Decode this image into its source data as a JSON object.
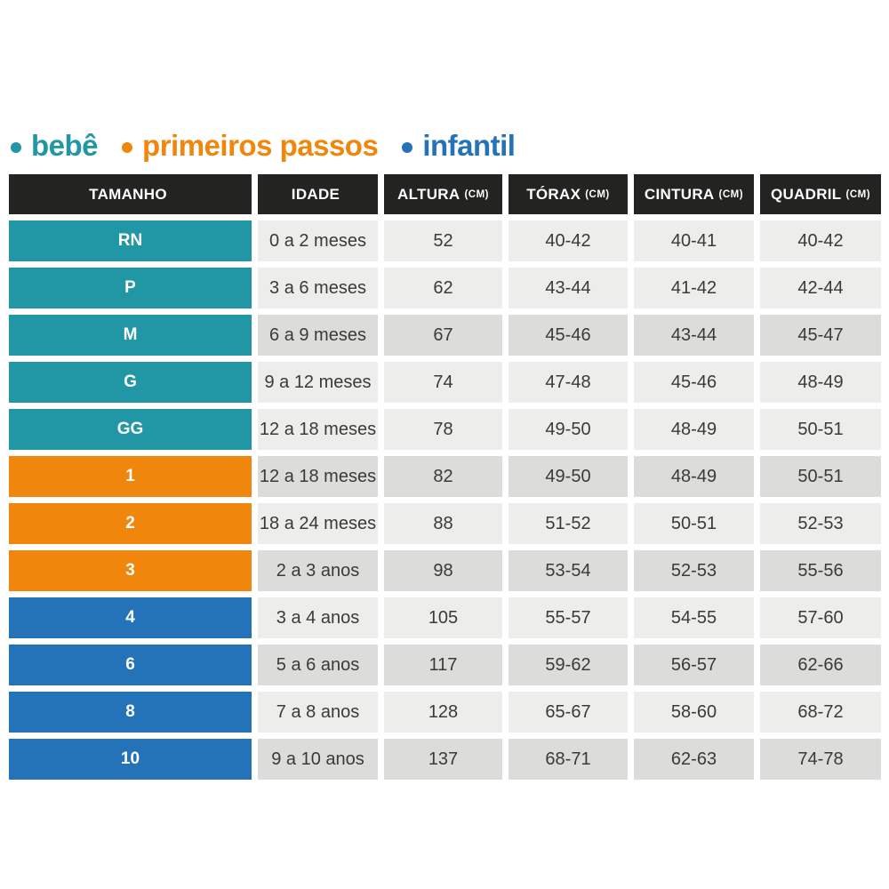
{
  "legend": {
    "items": [
      {
        "label": "bebê",
        "color": "#2196a4"
      },
      {
        "label": "primeiros passos",
        "color": "#f0860b"
      },
      {
        "label": "infantil",
        "color": "#2473b8"
      }
    ]
  },
  "table": {
    "headers": [
      {
        "label": "TAMANHO",
        "unit": ""
      },
      {
        "label": "IDADE",
        "unit": ""
      },
      {
        "label": "ALTURA",
        "unit": "(CM)"
      },
      {
        "label": "TÓRAX",
        "unit": "(CM)"
      },
      {
        "label": "CINTURA",
        "unit": "(CM)"
      },
      {
        "label": "QUADRIL",
        "unit": "(CM)"
      }
    ],
    "rows": [
      {
        "size": "RN",
        "age": "0 a 2 meses",
        "height": "52",
        "chest": "40-42",
        "waist": "40-41",
        "hip": "40-42",
        "category": 0,
        "shade": "light"
      },
      {
        "size": "P",
        "age": "3 a 6 meses",
        "height": "62",
        "chest": "43-44",
        "waist": "41-42",
        "hip": "42-44",
        "category": 0,
        "shade": "light"
      },
      {
        "size": "M",
        "age": "6 a 9 meses",
        "height": "67",
        "chest": "45-46",
        "waist": "43-44",
        "hip": "45-47",
        "category": 0,
        "shade": "dark"
      },
      {
        "size": "G",
        "age": "9 a 12 meses",
        "height": "74",
        "chest": "47-48",
        "waist": "45-46",
        "hip": "48-49",
        "category": 0,
        "shade": "light"
      },
      {
        "size": "GG",
        "age": "12 a 18 meses",
        "height": "78",
        "chest": "49-50",
        "waist": "48-49",
        "hip": "50-51",
        "category": 0,
        "shade": "light"
      },
      {
        "size": "1",
        "age": "12 a 18 meses",
        "height": "82",
        "chest": "49-50",
        "waist": "48-49",
        "hip": "50-51",
        "category": 1,
        "shade": "dark"
      },
      {
        "size": "2",
        "age": "18 a 24 meses",
        "height": "88",
        "chest": "51-52",
        "waist": "50-51",
        "hip": "52-53",
        "category": 1,
        "shade": "light"
      },
      {
        "size": "3",
        "age": "2 a 3 anos",
        "height": "98",
        "chest": "53-54",
        "waist": "52-53",
        "hip": "55-56",
        "category": 1,
        "shade": "dark"
      },
      {
        "size": "4",
        "age": "3 a 4 anos",
        "height": "105",
        "chest": "55-57",
        "waist": "54-55",
        "hip": "57-60",
        "category": 2,
        "shade": "light"
      },
      {
        "size": "6",
        "age": "5 a 6 anos",
        "height": "117",
        "chest": "59-62",
        "waist": "56-57",
        "hip": "62-66",
        "category": 2,
        "shade": "dark"
      },
      {
        "size": "8",
        "age": "7 a 8 anos",
        "height": "128",
        "chest": "65-67",
        "waist": "58-60",
        "hip": "68-72",
        "category": 2,
        "shade": "light"
      },
      {
        "size": "10",
        "age": "9 a 10 anos",
        "height": "137",
        "chest": "68-71",
        "waist": "62-63",
        "hip": "74-78",
        "category": 2,
        "shade": "dark"
      }
    ]
  },
  "colors": {
    "teal": "#2196a4",
    "orange": "#f0860b",
    "blue": "#2473b8",
    "header_bg": "#232321",
    "row_light": "#ededeb",
    "row_dark": "#dcdcda",
    "cell_text": "#3a3a39"
  },
  "chart_data": {
    "type": "table",
    "title": "",
    "legend": [
      "bebê",
      "primeiros passos",
      "infantil"
    ],
    "legend_colors": [
      "#2196a4",
      "#f0860b",
      "#2473b8"
    ],
    "columns": [
      "TAMANHO",
      "IDADE",
      "ALTURA (CM)",
      "TÓRAX (CM)",
      "CINTURA (CM)",
      "QUADRIL (CM)"
    ],
    "rows": [
      [
        "RN",
        "0 a 2 meses",
        52,
        "40-42",
        "40-41",
        "40-42"
      ],
      [
        "P",
        "3 a 6 meses",
        62,
        "43-44",
        "41-42",
        "42-44"
      ],
      [
        "M",
        "6 a 9 meses",
        67,
        "45-46",
        "43-44",
        "45-47"
      ],
      [
        "G",
        "9 a 12 meses",
        74,
        "47-48",
        "45-46",
        "48-49"
      ],
      [
        "GG",
        "12 a 18 meses",
        78,
        "49-50",
        "48-49",
        "50-51"
      ],
      [
        "1",
        "12 a 18 meses",
        82,
        "49-50",
        "48-49",
        "50-51"
      ],
      [
        "2",
        "18 a 24 meses",
        88,
        "51-52",
        "50-51",
        "52-53"
      ],
      [
        "3",
        "2 a 3 anos",
        98,
        "53-54",
        "52-53",
        "55-56"
      ],
      [
        "4",
        "3 a 4 anos",
        105,
        "55-57",
        "54-55",
        "57-60"
      ],
      [
        "6",
        "5 a 6 anos",
        117,
        "59-62",
        "56-57",
        "62-66"
      ],
      [
        "8",
        "7 a 8 anos",
        128,
        "65-67",
        "58-60",
        "68-72"
      ],
      [
        "10",
        "9 a 10 anos",
        137,
        "68-71",
        "62-63",
        "74-78"
      ]
    ],
    "row_groups": [
      {
        "group": "bebê",
        "sizes": [
          "RN",
          "P",
          "M",
          "G",
          "GG"
        ]
      },
      {
        "group": "primeiros passos",
        "sizes": [
          "1",
          "2",
          "3"
        ]
      },
      {
        "group": "infantil",
        "sizes": [
          "4",
          "6",
          "8",
          "10"
        ]
      }
    ]
  }
}
